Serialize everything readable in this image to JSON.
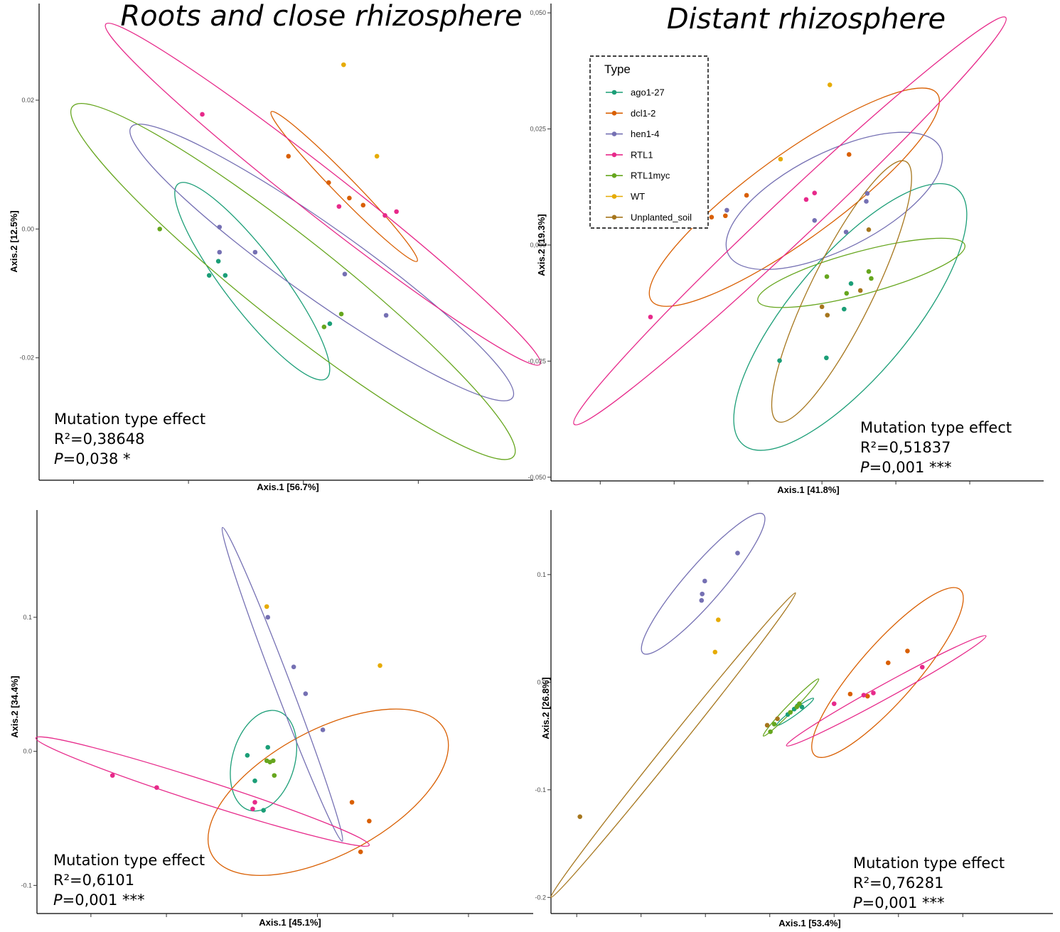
{
  "titles": {
    "left": "Roots and close rhizosphere",
    "right": "Distant rhizosphere"
  },
  "legend": {
    "title": "Type",
    "entries": [
      {
        "label": "ago1-27",
        "color": "#1b9e77"
      },
      {
        "label": "dcl1-2",
        "color": "#d95f02"
      },
      {
        "label": "hen1-4",
        "color": "#7570b3"
      },
      {
        "label": "RTL1",
        "color": "#e7298a"
      },
      {
        "label": "RTL1myc",
        "color": "#66a61e"
      },
      {
        "label": "WT",
        "color": "#e6ab02"
      },
      {
        "label": "Unplanted_soil",
        "color": "#a6761d"
      }
    ]
  },
  "chart_data": [
    {
      "type": "scatter",
      "xlabel": "Axis.1   [56.7%]",
      "ylabel": "Axis.2   [12.5%]",
      "xlim": [
        -0.05,
        0.38
      ],
      "ylim": [
        -0.039,
        0.035
      ],
      "xticks": [
        -0.02,
        0.08,
        0.18,
        0.28
      ],
      "yticks": [
        {
          "value": -0.02,
          "label": "-0.02"
        },
        {
          "value": 0.0,
          "label": "0.00"
        },
        {
          "value": 0.02,
          "label": "0.02"
        }
      ],
      "annotation": {
        "line1": "Mutation type effect",
        "r2": "R²=0,38648",
        "p_italic": "P",
        "p_rest": "=0,038 *"
      },
      "series": [
        {
          "name": "ago1-27",
          "color": "#1b9e77",
          "points": [
            [
              0.098,
              -0.0072
            ],
            [
              0.106,
              -0.005
            ],
            [
              0.112,
              -0.0072
            ],
            [
              0.203,
              -0.0147
            ]
          ],
          "ellipse": [
            [
              0.071,
              0.007
            ],
            [
              0.2,
              -0.0232
            ]
          ]
        },
        {
          "name": "dcl1-2",
          "color": "#d95f02",
          "points": [
            [
              0.167,
              0.0113
            ],
            [
              0.202,
              0.0072
            ],
            [
              0.22,
              0.0048
            ],
            [
              0.232,
              0.0037
            ]
          ],
          "ellipse": [
            [
              0.152,
              0.0182
            ],
            [
              0.279,
              -0.005
            ]
          ]
        },
        {
          "name": "hen1-4",
          "color": "#7570b3",
          "points": [
            [
              0.107,
              0.0003
            ],
            [
              0.138,
              -0.0036
            ],
            [
              0.107,
              -0.0036
            ],
            [
              0.216,
              -0.007
            ],
            [
              0.252,
              -0.0134
            ]
          ],
          "ellipse": [
            [
              0.03,
              0.0158
            ],
            [
              0.362,
              -0.0262
            ]
          ]
        },
        {
          "name": "RTL1",
          "color": "#e7298a",
          "points": [
            [
              0.092,
              0.0178
            ],
            [
              0.211,
              0.0035
            ],
            [
              0.251,
              0.0021
            ],
            [
              0.261,
              0.0027
            ]
          ],
          "ellipse": [
            [
              0.008,
              0.0318
            ],
            [
              0.386,
              -0.021
            ]
          ]
        },
        {
          "name": "RTL1myc",
          "color": "#66a61e",
          "points": [
            [
              0.055,
              0.0
            ],
            [
              0.198,
              -0.0152
            ],
            [
              0.213,
              -0.0132
            ]
          ],
          "ellipse": [
            [
              -0.021,
              0.019
            ],
            [
              0.363,
              -0.0353
            ]
          ]
        },
        {
          "name": "WT",
          "color": "#e6ab02",
          "points": [
            [
              0.215,
              0.0255
            ],
            [
              0.244,
              0.0113
            ]
          ],
          "ellipse": null
        }
      ]
    },
    {
      "type": "scatter",
      "xlabel": "Axis.1   [41.8%]",
      "ylabel": "Axis.2   [19.3%]",
      "xlim": [
        -0.04,
        0.06
      ],
      "ylim": [
        -0.0508,
        0.052
      ],
      "xticks": [
        -0.03,
        -0.015,
        0.0,
        0.015,
        0.03,
        0.045
      ],
      "yticks": [
        {
          "value": -0.05,
          "label": "-0,050"
        },
        {
          "value": -0.025,
          "label": "-0,025"
        },
        {
          "value": 0.0,
          "label": "0,000"
        },
        {
          "value": 0.025,
          "label": "0,025"
        },
        {
          "value": 0.05,
          "label": "0,050"
        }
      ],
      "annotation": {
        "line1": "Mutation type effect",
        "r2": "R²=0,51837",
        "p_italic": "P",
        "p_rest": "=0,001 ***"
      },
      "series": [
        {
          "name": "ago1-27",
          "color": "#1b9e77",
          "points": [
            [
              0.0064,
              -0.0249
            ],
            [
              0.0159,
              -0.0243
            ],
            [
              0.0195,
              -0.0138
            ],
            [
              0.0209,
              -0.0083
            ]
          ],
          "ellipse": [
            [
              -0.001,
              -0.043
            ],
            [
              0.0425,
              0.012
            ]
          ]
        },
        {
          "name": "dcl1-2",
          "color": "#d95f02",
          "points": [
            [
              -0.0074,
              0.006
            ],
            [
              -0.0046,
              0.0063
            ],
            [
              -0.0003,
              0.0107
            ],
            [
              0.0205,
              0.0195
            ]
          ],
          "ellipse": [
            [
              -0.0196,
              -0.012
            ],
            [
              0.0384,
              0.0326
            ]
          ]
        },
        {
          "name": "hen1-4",
          "color": "#7570b3",
          "points": [
            [
              -0.0043,
              0.0075
            ],
            [
              0.0135,
              0.0053
            ],
            [
              0.0199,
              0.0028
            ],
            [
              0.024,
              0.0094
            ],
            [
              0.0242,
              0.0111
            ]
          ],
          "ellipse": [
            [
              -0.004,
              -0.002
            ],
            [
              0.039,
              0.021
            ]
          ]
        },
        {
          "name": "RTL1",
          "color": "#e7298a",
          "points": [
            [
              -0.0198,
              -0.0155
            ],
            [
              0.0118,
              0.0098
            ],
            [
              0.0135,
              0.0112
            ]
          ],
          "ellipse": [
            [
              -0.0353,
              -0.0386
            ],
            [
              0.0523,
              0.049
            ]
          ]
        },
        {
          "name": "RTL1myc",
          "color": "#66a61e",
          "points": [
            [
              0.016,
              -0.0068
            ],
            [
              0.02,
              -0.0104
            ],
            [
              0.0245,
              -0.0057
            ],
            [
              0.025,
              -0.0072
            ]
          ],
          "ellipse": [
            [
              0.002,
              -0.012
            ],
            [
              0.044,
              0.0
            ]
          ]
        },
        {
          "name": "WT",
          "color": "#e6ab02",
          "points": [
            [
              0.0066,
              0.0185
            ],
            [
              0.0166,
              0.0345
            ]
          ],
          "ellipse": null
        },
        {
          "name": "Unplanted_soil",
          "color": "#a6761d",
          "points": [
            [
              0.015,
              -0.0133
            ],
            [
              0.0161,
              -0.0151
            ],
            [
              0.0228,
              -0.0098
            ],
            [
              0.0245,
              0.0033
            ]
          ],
          "ellipse": [
            [
              0.006,
              -0.038
            ],
            [
              0.032,
              0.018
            ]
          ]
        }
      ]
    },
    {
      "type": "scatter",
      "xlabel": "Axis.1   [45.1%]",
      "ylabel": "Axis.2   [34.4%]",
      "xlim": [
        -0.22,
        0.24
      ],
      "ylim": [
        -0.121,
        0.18
      ],
      "xticks": [
        -0.17,
        -0.1,
        -0.03,
        0.04,
        0.11,
        0.18
      ],
      "yticks": [
        {
          "value": -0.1,
          "label": "-0.1"
        },
        {
          "value": 0.0,
          "label": "0.0"
        },
        {
          "value": 0.1,
          "label": "0.1"
        }
      ],
      "annotation": {
        "line1": "Mutation type effect",
        "r2": "R²=0,6101",
        "p_italic": "P",
        "p_rest": "=0,001 ***"
      },
      "series": [
        {
          "name": "ago1-27",
          "color": "#1b9e77",
          "points": [
            [
              -0.025,
              -0.003
            ],
            [
              -0.006,
              0.003
            ],
            [
              -0.018,
              -0.022
            ],
            [
              -0.01,
              -0.044
            ]
          ],
          "ellipse": [
            [
              -0.023,
              -0.044
            ],
            [
              0.003,
              0.03
            ]
          ]
        },
        {
          "name": "dcl1-2",
          "color": "#d95f02",
          "points": [
            [
              0.072,
              -0.038
            ],
            [
              0.088,
              -0.052
            ],
            [
              0.08,
              -0.075
            ]
          ],
          "ellipse": [
            [
              -0.058,
              -0.077
            ],
            [
              0.158,
              0.016
            ]
          ]
        },
        {
          "name": "hen1-4",
          "color": "#7570b3",
          "points": [
            [
              -0.006,
              0.1
            ],
            [
              0.018,
              0.063
            ],
            [
              0.029,
              0.043
            ],
            [
              0.045,
              0.016
            ]
          ],
          "ellipse": [
            [
              -0.048,
              0.167
            ],
            [
              0.063,
              -0.067
            ]
          ]
        },
        {
          "name": "RTL1",
          "color": "#e7298a",
          "points": [
            [
              -0.15,
              -0.018
            ],
            [
              -0.109,
              -0.027
            ],
            [
              -0.018,
              -0.038
            ],
            [
              -0.02,
              -0.043
            ]
          ],
          "ellipse": [
            [
              -0.221,
              0.01
            ],
            [
              0.088,
              -0.07
            ]
          ]
        },
        {
          "name": "RTL1myc",
          "color": "#66a61e",
          "points": [
            [
              -0.007,
              -0.007
            ],
            [
              -0.001,
              -0.007
            ],
            [
              0.0,
              -0.018
            ],
            [
              -0.004,
              -0.008
            ]
          ],
          "ellipse": null
        },
        {
          "name": "WT",
          "color": "#e6ab02",
          "points": [
            [
              -0.007,
              0.108
            ],
            [
              0.098,
              0.064
            ]
          ],
          "ellipse": null
        }
      ]
    },
    {
      "type": "scatter",
      "xlabel": "Axis.1   [53.4%]",
      "ylabel": "Axis.2   [26.8%]",
      "xlim": [
        -0.44,
        0.34
      ],
      "ylim": [
        -0.215,
        0.16
      ],
      "xticks": [
        -0.4,
        -0.3,
        -0.2,
        -0.1,
        0.0,
        0.1,
        0.2
      ],
      "yticks": [
        {
          "value": -0.2,
          "label": "-0.2"
        },
        {
          "value": -0.1,
          "label": "-0.1"
        },
        {
          "value": 0.0,
          "label": "0.0"
        },
        {
          "value": 0.1,
          "label": "0.1"
        }
      ],
      "annotation": {
        "line1": "Mutation type effect",
        "r2": "R²=0,76281",
        "p_italic": "P",
        "p_rest": "=0,001 ***"
      },
      "series": [
        {
          "name": "ago1-27",
          "color": "#1b9e77",
          "points": [
            [
              -0.072,
              -0.03
            ],
            [
              -0.062,
              -0.025
            ],
            [
              -0.057,
              -0.022
            ],
            [
              -0.05,
              -0.023
            ]
          ],
          "ellipse": [
            [
              -0.089,
              -0.04
            ],
            [
              -0.032,
              -0.015
            ]
          ]
        },
        {
          "name": "dcl1-2",
          "color": "#d95f02",
          "points": [
            [
              0.025,
              -0.011
            ],
            [
              0.052,
              -0.013
            ],
            [
              0.084,
              0.018
            ],
            [
              0.114,
              0.029
            ]
          ],
          "ellipse": [
            [
              -0.03,
              -0.068
            ],
            [
              0.196,
              0.086
            ]
          ]
        },
        {
          "name": "hen1-4",
          "color": "#7570b3",
          "points": [
            [
              -0.206,
              0.076
            ],
            [
              -0.205,
              0.082
            ],
            [
              -0.201,
              0.094
            ],
            [
              -0.15,
              0.12
            ]
          ],
          "ellipse": [
            [
              -0.297,
              0.027
            ],
            [
              -0.11,
              0.156
            ]
          ]
        },
        {
          "name": "RTL1",
          "color": "#e7298a",
          "points": [
            [
              0.0,
              -0.02
            ],
            [
              0.046,
              -0.012
            ],
            [
              0.061,
              -0.01
            ],
            [
              0.137,
              0.014
            ]
          ],
          "ellipse": [
            [
              -0.074,
              -0.059
            ],
            [
              0.236,
              0.043
            ]
          ]
        },
        {
          "name": "RTL1myc",
          "color": "#66a61e",
          "points": [
            [
              -0.099,
              -0.046
            ],
            [
              -0.093,
              -0.039
            ],
            [
              -0.068,
              -0.028
            ],
            [
              -0.058,
              -0.023
            ],
            [
              -0.054,
              -0.02
            ]
          ],
          "ellipse": [
            [
              -0.11,
              -0.05
            ],
            [
              -0.024,
              0.003
            ]
          ]
        },
        {
          "name": "WT",
          "color": "#e6ab02",
          "points": [
            [
              -0.18,
              0.058
            ],
            [
              -0.185,
              0.028
            ]
          ],
          "ellipse": null
        },
        {
          "name": "Unplanted_soil",
          "color": "#a6761d",
          "points": [
            [
              -0.395,
              -0.125
            ],
            [
              -0.104,
              -0.04
            ],
            [
              -0.088,
              -0.034
            ]
          ],
          "ellipse": [
            [
              -0.44,
              -0.2
            ],
            [
              -0.06,
              0.083
            ]
          ]
        }
      ]
    }
  ]
}
